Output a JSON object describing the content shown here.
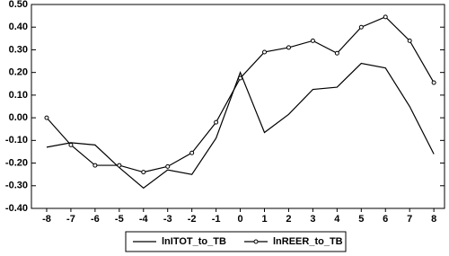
{
  "chart_data": {
    "type": "line",
    "x": [
      -8,
      -7,
      -6,
      -5,
      -4,
      -3,
      -2,
      -1,
      0,
      1,
      2,
      3,
      4,
      5,
      6,
      7,
      8
    ],
    "xlim": [
      -8.63,
      8.44
    ],
    "xticks": [
      -8,
      -7,
      -6,
      -5,
      -4,
      -3,
      -2,
      -1,
      0,
      1,
      2,
      3,
      4,
      5,
      6,
      7,
      8
    ],
    "ylim": [
      -0.4,
      0.5
    ],
    "yticks": [
      {
        "value": -0.4,
        "label": "-0.40"
      },
      {
        "value": -0.3,
        "label": "-0.30"
      },
      {
        "value": -0.2,
        "label": "-0.20"
      },
      {
        "value": -0.1,
        "label": "-0.10"
      },
      {
        "value": 0,
        "label": "0.00"
      },
      {
        "value": 0.1,
        "label": "0.10"
      },
      {
        "value": 0.2,
        "label": "0.20"
      },
      {
        "value": 0.3,
        "label": "0.30"
      },
      {
        "value": 0.4,
        "label": "0.40"
      },
      {
        "value": 0.5,
        "label": "0.50"
      }
    ],
    "legend": "bottom",
    "series": [
      {
        "name": "lnITOT_to_TB",
        "color": "#000000",
        "marker": "none",
        "values": [
          -0.13,
          -0.11,
          -0.12,
          -0.22,
          -0.31,
          -0.23,
          -0.25,
          -0.09,
          0.2,
          -0.065,
          0.015,
          0.125,
          0.135,
          0.24,
          0.22,
          0.05,
          -0.16
        ]
      },
      {
        "name": "lnREER_to_TB",
        "color": "#000000",
        "marker": "circle",
        "values": [
          0.0,
          -0.12,
          -0.21,
          -0.21,
          -0.24,
          -0.215,
          -0.155,
          -0.02,
          0.175,
          0.29,
          0.31,
          0.34,
          0.285,
          0.4,
          0.445,
          0.34,
          0.155
        ]
      }
    ]
  }
}
